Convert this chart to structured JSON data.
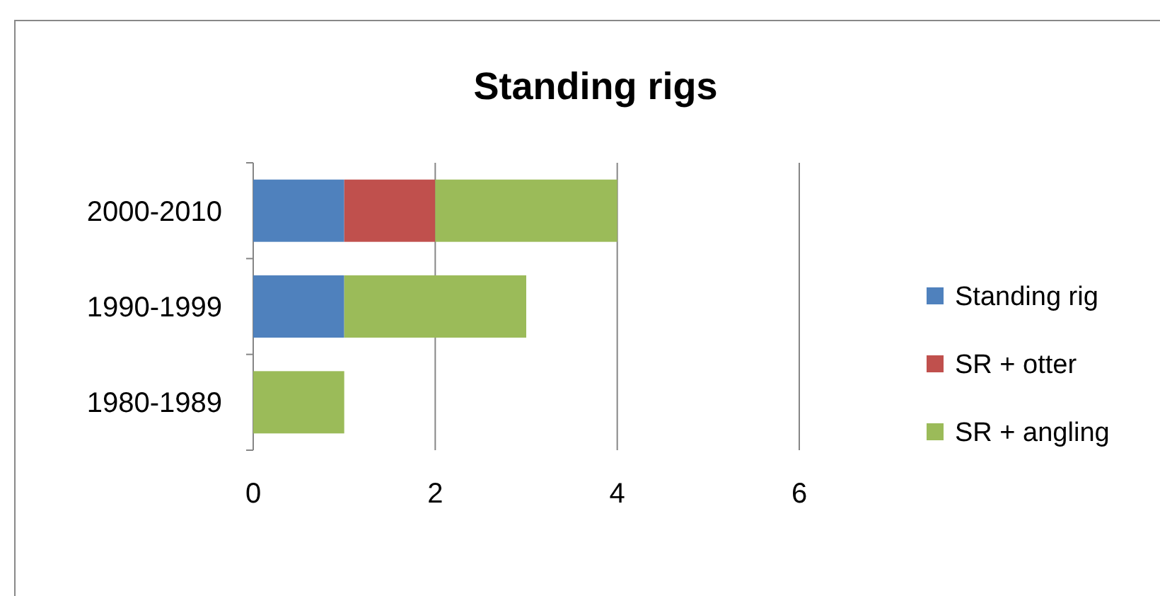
{
  "chart_data": {
    "type": "bar",
    "title": "Standing rigs",
    "orientation": "horizontal",
    "stacked": true,
    "categories": [
      "2000-2010",
      "1990-1999",
      "1980-1989"
    ],
    "series": [
      {
        "name": "Standing rig",
        "color": "#4f81bd",
        "values": [
          1,
          1,
          0
        ]
      },
      {
        "name": "SR + otter",
        "color": "#c0504d",
        "values": [
          1,
          0,
          0
        ]
      },
      {
        "name": "SR + angling",
        "color": "#9bbb59",
        "values": [
          2,
          2,
          1
        ]
      }
    ],
    "xlim": [
      0,
      6
    ],
    "xticks": [
      0,
      2,
      4,
      6
    ],
    "grid": "x",
    "legend": "right"
  }
}
